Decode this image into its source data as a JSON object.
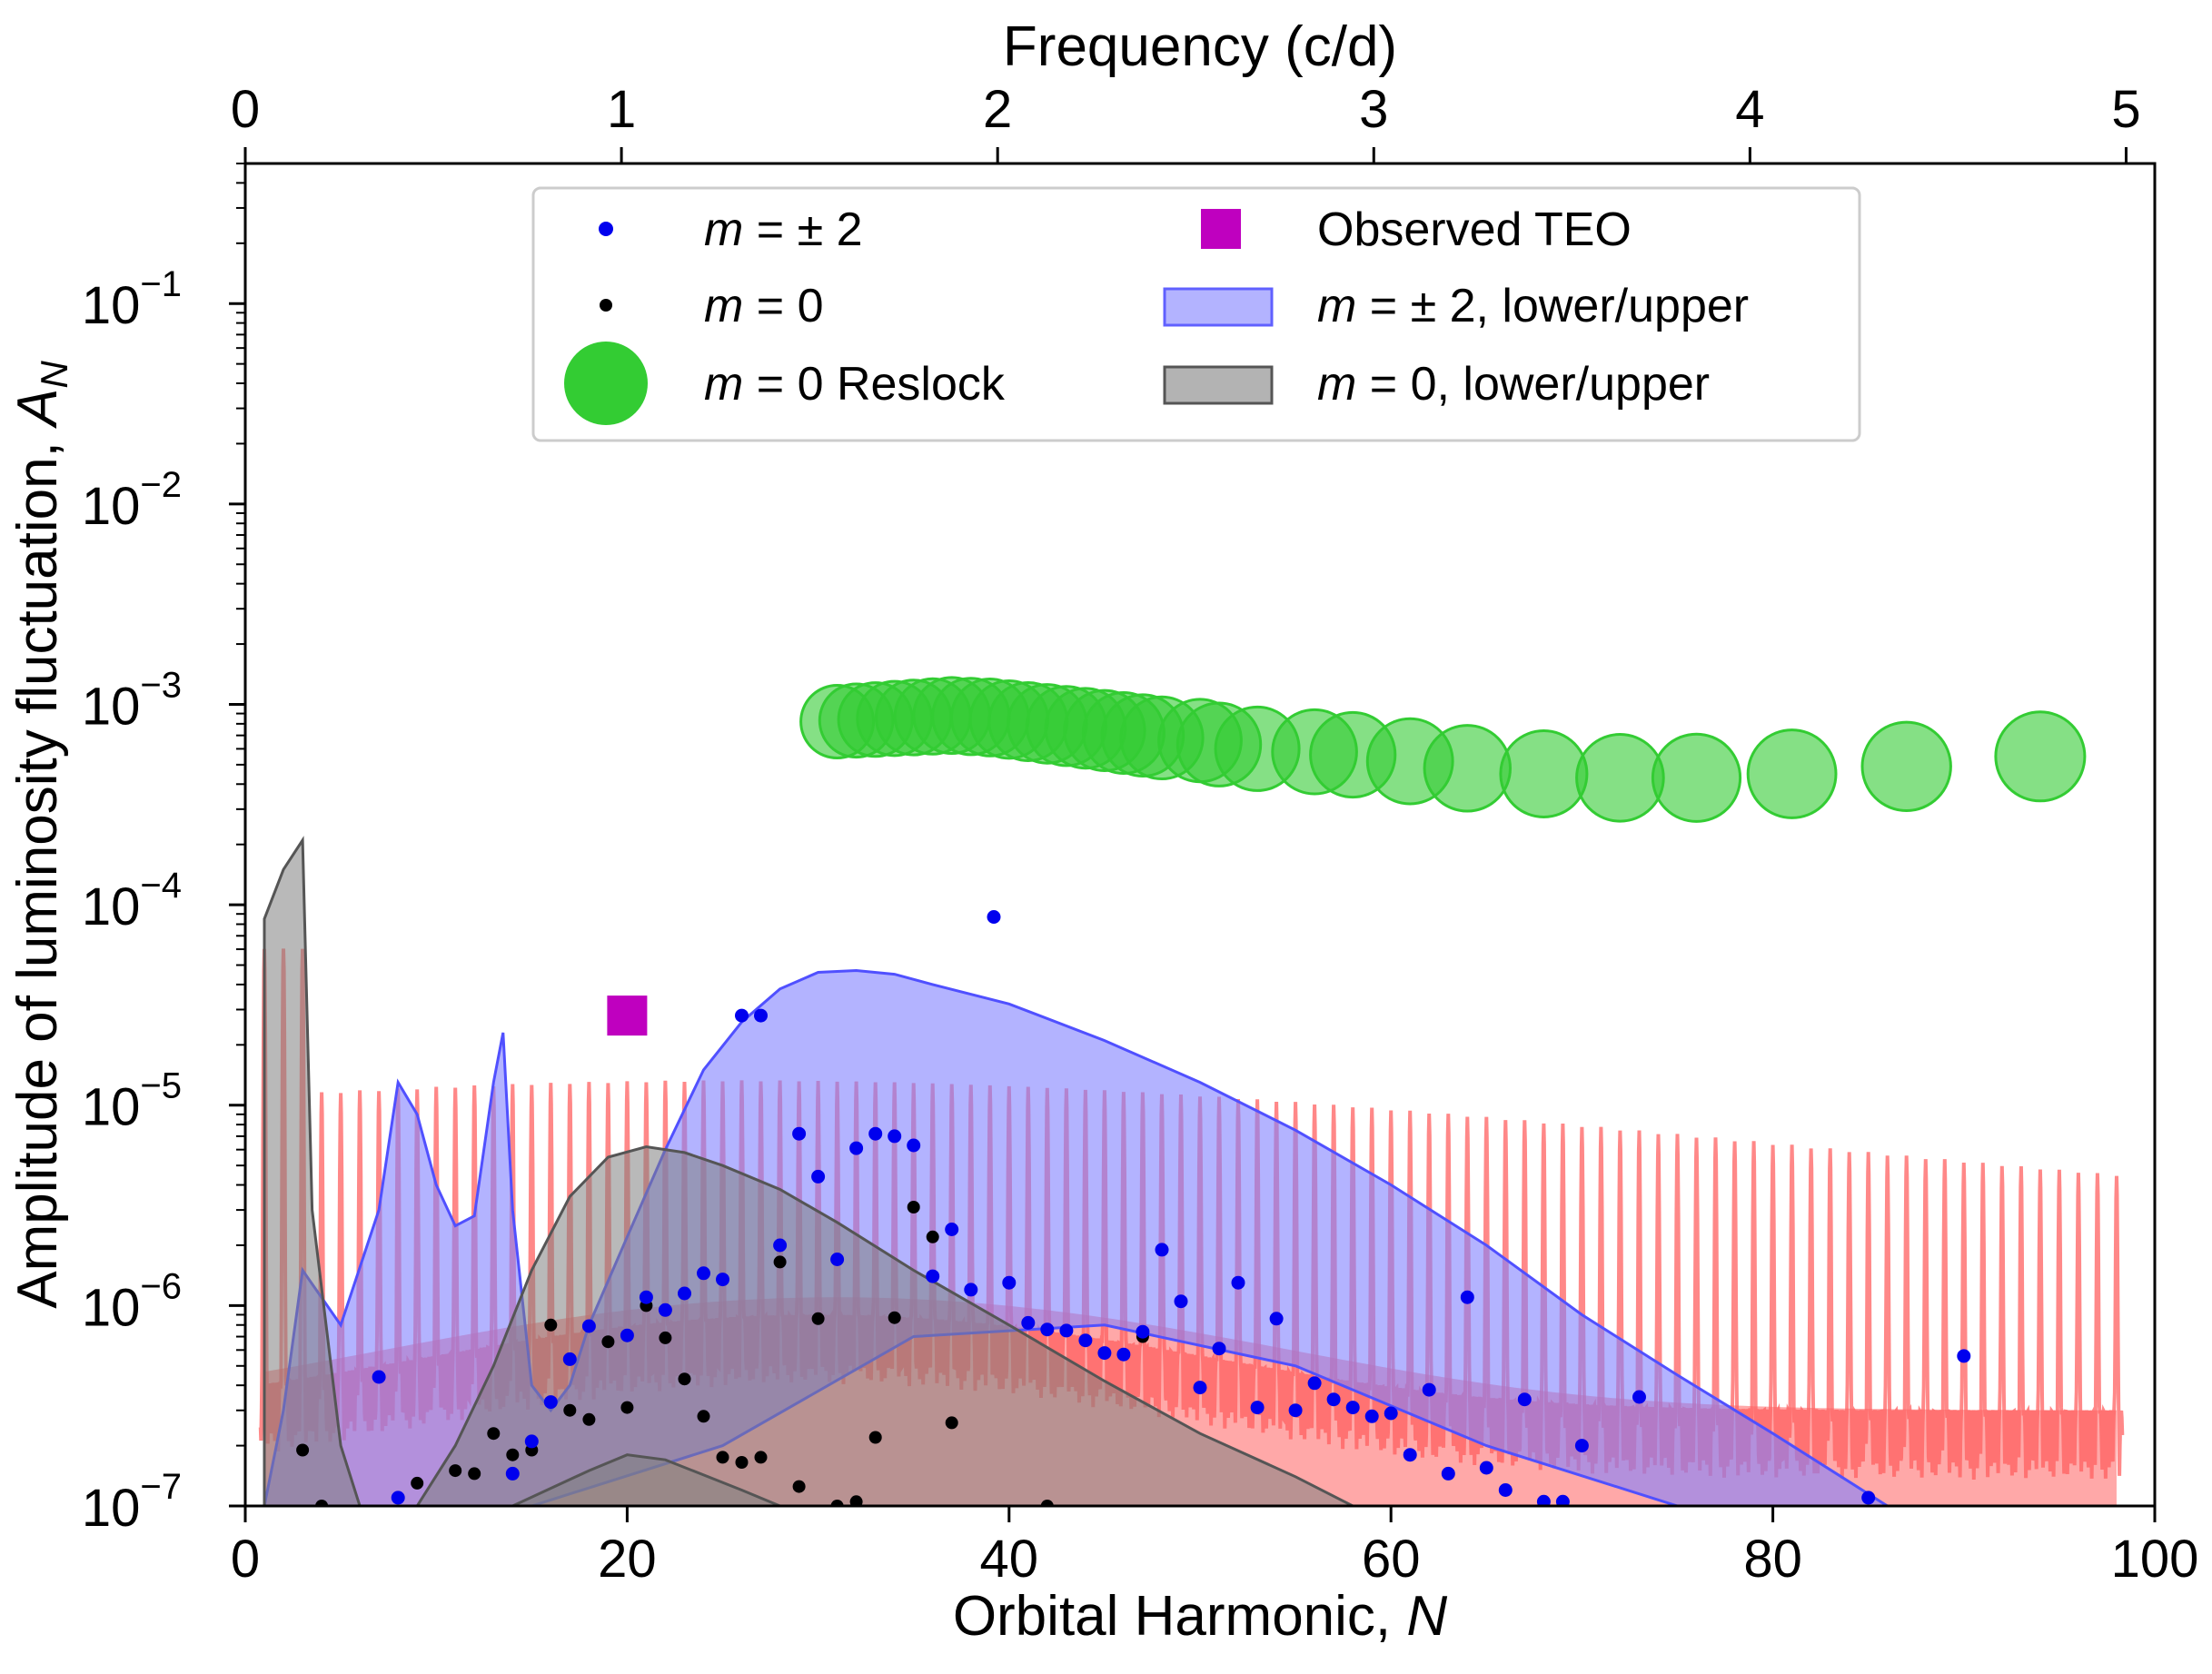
{
  "chart_data": {
    "type": "scatter",
    "xlabel": "Orbital Harmonic, ",
    "xlabel_var": "N",
    "ylabel": "Amplitude of luminosity fluctuation, ",
    "ylabel_var": "A",
    "ylabel_sub": "N",
    "top_xlabel": "Frequency (c/d)",
    "xlim": [
      0,
      100
    ],
    "ylim": [
      1e-07,
      0.5
    ],
    "yscale": "log",
    "x_ticks": [
      "0",
      "20",
      "40",
      "60",
      "80",
      "100"
    ],
    "x_tick_values": [
      0,
      20,
      40,
      60,
      80,
      100
    ],
    "top_ticks": [
      "0",
      "1",
      "2",
      "3",
      "4",
      "5"
    ],
    "top_tick_values": [
      0,
      19.7,
      39.4,
      59.1,
      78.8,
      98.5
    ],
    "y_ticks": [
      {
        "base": "10",
        "exp": "−1",
        "value": 0.1
      },
      {
        "base": "10",
        "exp": "−2",
        "value": 0.01
      },
      {
        "base": "10",
        "exp": "−3",
        "value": 0.001
      },
      {
        "base": "10",
        "exp": "−4",
        "value": 0.0001
      },
      {
        "base": "10",
        "exp": "−5",
        "value": 1e-05
      },
      {
        "base": "10",
        "exp": "−6",
        "value": 1e-06
      },
      {
        "base": "10",
        "exp": "−7",
        "value": 1e-07
      }
    ],
    "legend": {
      "position": "top-center",
      "entries": [
        {
          "key": "m2",
          "prefix": "m",
          "text": " = ± 2"
        },
        {
          "key": "m0",
          "prefix": "m",
          "text": " = 0"
        },
        {
          "key": "reslock",
          "prefix": "m",
          "text": " = 0 Reslock"
        },
        {
          "key": "teo",
          "prefix": "",
          "text": "Observed TEO"
        },
        {
          "key": "band2",
          "prefix": "m",
          "text": " = ± 2, lower/upper"
        },
        {
          "key": "band0",
          "prefix": "m",
          "text": " = 0, lower/upper"
        }
      ]
    },
    "colors": {
      "m2": "#0000ee",
      "m0": "#000000",
      "reslock": "#33cc33",
      "teo": "#bf00bf",
      "band2": "#8080ff",
      "band0": "#808080",
      "spectrum": "#ff6060"
    },
    "series": [
      {
        "key": "m2",
        "points": [
          [
            7,
            4.4e-07
          ],
          [
            8,
            1.1e-07
          ],
          [
            14,
            1.45e-07
          ],
          [
            15,
            2.1e-07
          ],
          [
            16,
            3.3e-07
          ],
          [
            17,
            5.4e-07
          ],
          [
            18,
            7.9e-07
          ],
          [
            20,
            7.1e-07
          ],
          [
            21,
            1.1e-06
          ],
          [
            22,
            9.5e-07
          ],
          [
            23,
            1.15e-06
          ],
          [
            24,
            1.45e-06
          ],
          [
            25,
            1.35e-06
          ],
          [
            26,
            2.8e-05
          ],
          [
            27,
            2.8e-05
          ],
          [
            28,
            2e-06
          ],
          [
            29,
            7.2e-06
          ],
          [
            30,
            4.4e-06
          ],
          [
            31,
            1.7e-06
          ],
          [
            32,
            6.1e-06
          ],
          [
            33,
            7.2e-06
          ],
          [
            34,
            7e-06
          ],
          [
            35,
            6.3e-06
          ],
          [
            36,
            1.4e-06
          ],
          [
            37,
            2.4e-06
          ],
          [
            38,
            1.2e-06
          ],
          [
            39.2,
            8.7e-05
          ],
          [
            40,
            1.3e-06
          ],
          [
            41,
            8.2e-07
          ],
          [
            42,
            7.6e-07
          ],
          [
            43,
            7.5e-07
          ],
          [
            44,
            6.7e-07
          ],
          [
            45,
            5.8e-07
          ],
          [
            46,
            5.7e-07
          ],
          [
            47,
            7.4e-07
          ],
          [
            48,
            1.9e-06
          ],
          [
            49,
            1.05e-06
          ],
          [
            50,
            3.9e-07
          ],
          [
            51,
            6.1e-07
          ],
          [
            52,
            1.3e-06
          ],
          [
            53,
            3.1e-07
          ],
          [
            54,
            8.6e-07
          ],
          [
            55,
            3e-07
          ],
          [
            56,
            4.1e-07
          ],
          [
            57,
            3.4e-07
          ],
          [
            58,
            3.1e-07
          ],
          [
            59,
            2.8e-07
          ],
          [
            60,
            2.9e-07
          ],
          [
            61,
            1.8e-07
          ],
          [
            62,
            3.8e-07
          ],
          [
            63,
            1.45e-07
          ],
          [
            64,
            1.1e-06
          ],
          [
            65,
            1.55e-07
          ],
          [
            66,
            1.2e-07
          ],
          [
            67,
            3.4e-07
          ],
          [
            68,
            1.05e-07
          ],
          [
            69,
            1.05e-07
          ],
          [
            70,
            2e-07
          ],
          [
            73,
            3.5e-07
          ],
          [
            85,
            1.1e-07
          ],
          [
            90,
            5.6e-07
          ]
        ]
      },
      {
        "key": "m0",
        "points": [
          [
            3,
            1.9e-07
          ],
          [
            4,
            1e-07
          ],
          [
            9,
            1.3e-07
          ],
          [
            11,
            1.5e-07
          ],
          [
            12,
            1.45e-07
          ],
          [
            13,
            2.3e-07
          ],
          [
            14,
            1.8e-07
          ],
          [
            15,
            1.9e-07
          ],
          [
            16,
            8e-07
          ],
          [
            17,
            3e-07
          ],
          [
            18,
            2.7e-07
          ],
          [
            19,
            6.6e-07
          ],
          [
            20,
            3.1e-07
          ],
          [
            21,
            1e-06
          ],
          [
            22,
            6.9e-07
          ],
          [
            23,
            4.3e-07
          ],
          [
            24,
            2.8e-07
          ],
          [
            25,
            1.75e-07
          ],
          [
            26,
            1.65e-07
          ],
          [
            27,
            1.75e-07
          ],
          [
            28,
            1.65e-06
          ],
          [
            29,
            1.25e-07
          ],
          [
            30,
            8.6e-07
          ],
          [
            31,
            1e-07
          ],
          [
            32,
            1.05e-07
          ],
          [
            33,
            2.2e-07
          ],
          [
            34,
            8.7e-07
          ],
          [
            35,
            3.1e-06
          ],
          [
            36,
            2.2e-06
          ],
          [
            37,
            2.6e-07
          ],
          [
            42,
            1e-07
          ],
          [
            47,
            7e-07
          ]
        ]
      },
      {
        "key": "reslock",
        "points": [
          [
            31,
            0.00082
          ],
          [
            32,
            0.00083
          ],
          [
            33,
            0.00084
          ],
          [
            34,
            0.00085
          ],
          [
            35,
            0.00086
          ],
          [
            36,
            0.00087
          ],
          [
            37,
            0.00088
          ],
          [
            38,
            0.00087
          ],
          [
            39,
            0.00086
          ],
          [
            40,
            0.00084
          ],
          [
            41,
            0.00082
          ],
          [
            42,
            0.0008
          ],
          [
            43,
            0.00078
          ],
          [
            44,
            0.00076
          ],
          [
            45,
            0.00074
          ],
          [
            46,
            0.00072
          ],
          [
            47,
            0.0007
          ],
          [
            48,
            0.00068
          ],
          [
            50,
            0.00066
          ],
          [
            51,
            0.00063
          ],
          [
            53,
            0.0006
          ],
          [
            56,
            0.00058
          ],
          [
            58,
            0.00056
          ],
          [
            61,
            0.00052
          ],
          [
            64,
            0.00048
          ],
          [
            68,
            0.00045
          ],
          [
            72,
            0.00043
          ],
          [
            76,
            0.00043
          ],
          [
            81,
            0.00045
          ],
          [
            87,
            0.00049
          ],
          [
            94,
            0.00055
          ]
        ]
      },
      {
        "key": "teo",
        "points": [
          [
            20,
            2.8e-05
          ]
        ]
      }
    ],
    "bands": [
      {
        "key": "band2",
        "upper": [
          [
            1,
            1e-07
          ],
          [
            2,
            3e-07
          ],
          [
            3,
            1.5e-06
          ],
          [
            5,
            8e-07
          ],
          [
            7,
            3e-06
          ],
          [
            8,
            1.3e-05
          ],
          [
            9,
            9e-06
          ],
          [
            10,
            4e-06
          ],
          [
            11,
            2.5e-06
          ],
          [
            12,
            2.8e-06
          ],
          [
            13,
            1.3e-05
          ],
          [
            13.5,
            2.3e-05
          ],
          [
            14,
            3e-06
          ],
          [
            15,
            4e-07
          ],
          [
            16,
            3e-07
          ],
          [
            17,
            4e-07
          ],
          [
            18,
            8e-07
          ],
          [
            20,
            2.2e-06
          ],
          [
            22,
            6e-06
          ],
          [
            24,
            1.5e-05
          ],
          [
            26,
            2.6e-05
          ],
          [
            28,
            3.8e-05
          ],
          [
            30,
            4.6e-05
          ],
          [
            32,
            4.7e-05
          ],
          [
            34,
            4.5e-05
          ],
          [
            36,
            4e-05
          ],
          [
            40,
            3.2e-05
          ],
          [
            45,
            2.1e-05
          ],
          [
            50,
            1.3e-05
          ],
          [
            55,
            7.5e-06
          ],
          [
            60,
            4e-06
          ],
          [
            65,
            2e-06
          ],
          [
            70,
            9e-07
          ],
          [
            75,
            4.5e-07
          ],
          [
            80,
            2.3e-07
          ],
          [
            86,
            1e-07
          ]
        ],
        "lower": [
          [
            1,
            1e-07
          ],
          [
            15,
            1e-07
          ],
          [
            25,
            2e-07
          ],
          [
            35,
            7e-07
          ],
          [
            45,
            8e-07
          ],
          [
            55,
            5e-07
          ],
          [
            65,
            2e-07
          ],
          [
            75,
            1e-07
          ],
          [
            86,
            1e-07
          ]
        ]
      },
      {
        "key": "band0",
        "upper": [
          [
            1,
            8.5e-05
          ],
          [
            2,
            0.00015
          ],
          [
            3,
            0.00021
          ],
          [
            3.5,
            3e-06
          ],
          [
            5,
            2e-07
          ],
          [
            6,
            1e-07
          ],
          [
            9,
            1e-07
          ],
          [
            11,
            2e-07
          ],
          [
            13,
            5e-07
          ],
          [
            15,
            1.5e-06
          ],
          [
            17,
            3.5e-06
          ],
          [
            19,
            5.5e-06
          ],
          [
            21,
            6.2e-06
          ],
          [
            23,
            5.8e-06
          ],
          [
            25,
            5e-06
          ],
          [
            28,
            3.8e-06
          ],
          [
            31,
            2.6e-06
          ],
          [
            35,
            1.5e-06
          ],
          [
            40,
            8e-07
          ],
          [
            45,
            4.2e-07
          ],
          [
            50,
            2.3e-07
          ],
          [
            55,
            1.4e-07
          ],
          [
            58,
            1e-07
          ]
        ],
        "lower": [
          [
            1,
            1e-07
          ],
          [
            58,
            1e-07
          ]
        ]
      },
      {
        "key": "band0_inner",
        "upper": [
          [
            14,
            1e-07
          ],
          [
            18,
            1.5e-07
          ],
          [
            20,
            1.8e-07
          ],
          [
            22,
            1.7e-07
          ],
          [
            26,
            1.2e-07
          ],
          [
            28,
            1e-07
          ]
        ],
        "lower": [
          [
            14,
            1e-07
          ],
          [
            28,
            1e-07
          ]
        ]
      }
    ]
  }
}
